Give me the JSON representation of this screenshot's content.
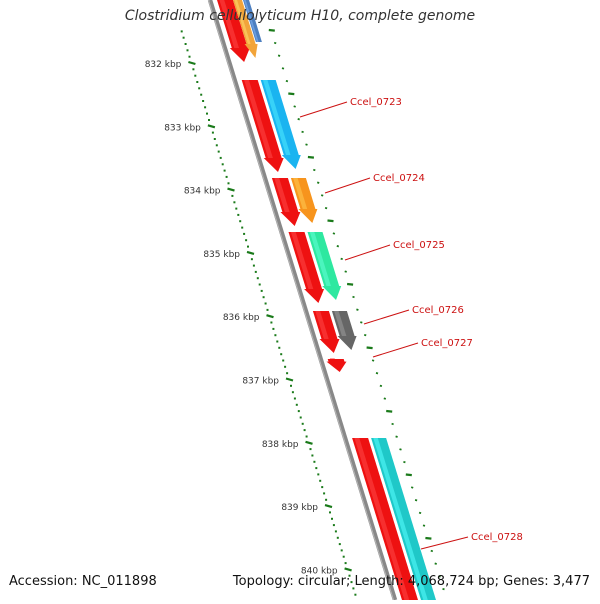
{
  "title": "Clostridium cellulolyticum H10, complete genome",
  "footer": {
    "accession": "Accession: NC_011898",
    "summary": "Topology: circular; Length: 4,068,724 bp; Genes: 3,477"
  },
  "scale_ticks": [
    {
      "label": "832 kbp"
    },
    {
      "label": "833 kbp"
    },
    {
      "label": "834 kbp"
    },
    {
      "label": "835 kbp"
    },
    {
      "label": "836 kbp"
    },
    {
      "label": "837 kbp"
    },
    {
      "label": "838 kbp"
    },
    {
      "label": "839 kbp"
    },
    {
      "label": "840 kbp"
    }
  ],
  "genes": [
    {
      "name": "",
      "strand": "+",
      "function_color": "#f2a43a"
    },
    {
      "name": "Ccel_0723",
      "strand": "+",
      "function_color": "#1ab4f0"
    },
    {
      "name": "Ccel_0724",
      "strand": "+",
      "function_color": "#f7941d"
    },
    {
      "name": "Ccel_0725",
      "strand": "+",
      "function_color": "#2ee8a0"
    },
    {
      "name": "Ccel_0726",
      "strand": "+",
      "function_color": "#666666"
    },
    {
      "name": "Ccel_0727",
      "strand": "+",
      "function_color": ""
    },
    {
      "name": "Ccel_0728",
      "strand": "+",
      "function_color": "#1fc8c8"
    }
  ],
  "colors": {
    "cds": "#ee1111",
    "backbone": "#888888",
    "scale_ticks": "#1a7a1a",
    "gene_labels": "#cc1111"
  }
}
